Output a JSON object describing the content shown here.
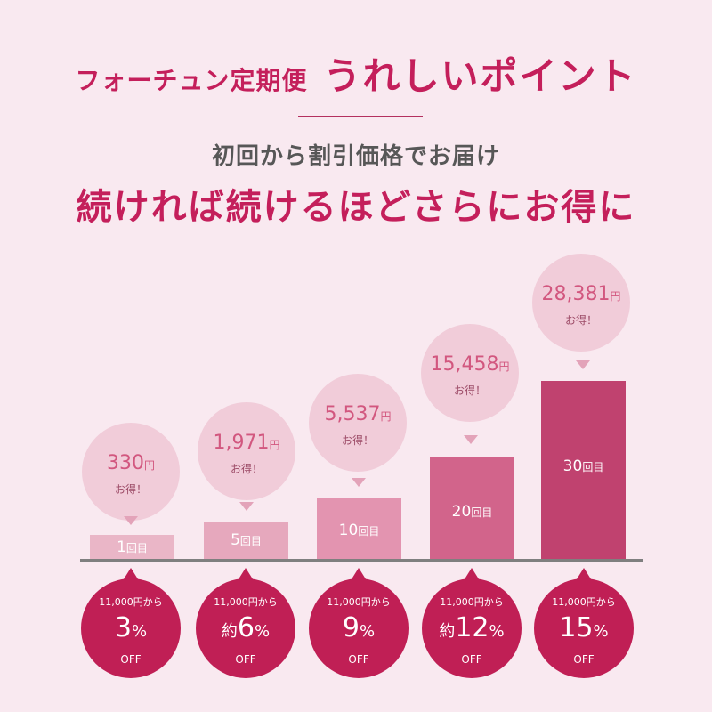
{
  "title": {
    "small": "フォーチュン定期便",
    "big": "うれしいポイント"
  },
  "subtitle": "初回から割引価格でお届け",
  "headline": "続ければ続けるほどさらにお得に",
  "colors": {
    "accent": "#c41f5b",
    "background": "#f9e9f0",
    "bubble": "#f1ccd9",
    "disc": "#c01f55"
  },
  "tiers": [
    {
      "savings": "330",
      "yen": "円",
      "deal": "お得！",
      "count": "1",
      "count_suffix": "回目",
      "from": "11,000円から",
      "prefix": "",
      "percent": "3",
      "percent_sign": "%",
      "off": "OFF"
    },
    {
      "savings": "1,971",
      "yen": "円",
      "deal": "お得！",
      "count": "5",
      "count_suffix": "回目",
      "from": "11,000円から",
      "prefix": "約",
      "percent": "6",
      "percent_sign": "%",
      "off": "OFF"
    },
    {
      "savings": "5,537",
      "yen": "円",
      "deal": "お得！",
      "count": "10",
      "count_suffix": "回目",
      "from": "11,000円から",
      "prefix": "",
      "percent": "9",
      "percent_sign": "%",
      "off": "OFF"
    },
    {
      "savings": "15,458",
      "yen": "円",
      "deal": "お得！",
      "count": "20",
      "count_suffix": "回目",
      "from": "11,000円から",
      "prefix": "約",
      "percent": "12",
      "percent_sign": "%",
      "off": "OFF"
    },
    {
      "savings": "28,381",
      "yen": "円",
      "deal": "お得！",
      "count": "30",
      "count_suffix": "回目",
      "from": "11,000円から",
      "prefix": "",
      "percent": "15",
      "percent_sign": "%",
      "off": "OFF"
    }
  ]
}
